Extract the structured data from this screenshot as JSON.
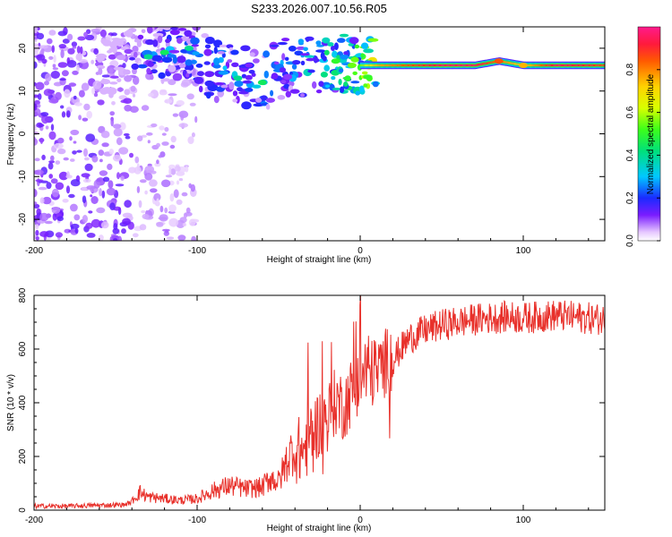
{
  "chart_data": [
    {
      "type": "heatmap",
      "title": "S233.2026.007.10.56.R05",
      "xlabel": "Height of straight line (km)",
      "ylabel": "Frequency (Hz)",
      "xlim": [
        -200,
        150
      ],
      "ylim": [
        -25,
        25
      ],
      "xticks": [
        -200,
        -100,
        0,
        100
      ],
      "xtick_labels": [
        "-200",
        "-100",
        "0",
        "100"
      ],
      "yticks": [
        20,
        10,
        0,
        -10,
        -20
      ],
      "ytick_labels": [
        "20",
        "10",
        "0",
        "-10",
        "-20"
      ],
      "colorbar": {
        "label": "Normalized spectral amplitude",
        "range": [
          0,
          1
        ],
        "ticks": [
          0.0,
          0.2,
          0.4,
          0.6,
          0.8
        ],
        "tick_labels": [
          "0.0",
          "0.2",
          "0.4",
          "0.6",
          "0.8"
        ]
      },
      "ridge": [
        {
          "x": -140,
          "y": 17,
          "amp": 0.2
        },
        {
          "x": -130,
          "y": 18,
          "amp": 0.25
        },
        {
          "x": -120,
          "y": 19,
          "amp": 0.3
        },
        {
          "x": -110,
          "y": 20,
          "amp": 0.25
        },
        {
          "x": -100,
          "y": 18,
          "amp": 0.3
        },
        {
          "x": -90,
          "y": 15,
          "amp": 0.35
        },
        {
          "x": -80,
          "y": 14,
          "amp": 0.3
        },
        {
          "x": -70,
          "y": 13,
          "amp": 0.3
        },
        {
          "x": -60,
          "y": 12,
          "amp": 0.35
        },
        {
          "x": -50,
          "y": 15,
          "amp": 0.3
        },
        {
          "x": -40,
          "y": 16,
          "amp": 0.35
        },
        {
          "x": -30,
          "y": 16,
          "amp": 0.4
        },
        {
          "x": -20,
          "y": 17,
          "amp": 0.45
        },
        {
          "x": -10,
          "y": 16,
          "amp": 0.5
        },
        {
          "x": 0,
          "y": 16,
          "amp": 0.55
        },
        {
          "x": 10,
          "y": 16,
          "amp": 0.75
        },
        {
          "x": 30,
          "y": 16,
          "amp": 0.85
        },
        {
          "x": 50,
          "y": 16,
          "amp": 0.95
        },
        {
          "x": 70,
          "y": 16,
          "amp": 0.95
        },
        {
          "x": 85,
          "y": 17,
          "amp": 0.8
        },
        {
          "x": 100,
          "y": 16,
          "amp": 0.7
        },
        {
          "x": 120,
          "y": 16,
          "amp": 0.95
        },
        {
          "x": 140,
          "y": 16,
          "amp": 0.9
        },
        {
          "x": 150,
          "y": 16,
          "amp": 0.85
        }
      ]
    },
    {
      "type": "line",
      "xlabel": "Height of straight line (km)",
      "ylabel": "SNR (10 * v/v)",
      "xlim": [
        -200,
        150
      ],
      "ylim": [
        0,
        800
      ],
      "xticks": [
        -200,
        -100,
        0,
        100
      ],
      "xtick_labels": [
        "-200",
        "-100",
        "0",
        "100"
      ],
      "yticks": [
        0,
        200,
        400,
        600,
        800
      ],
      "ytick_labels": [
        "0",
        "200",
        "400",
        "600",
        "800"
      ],
      "series": [
        {
          "name": "SNR",
          "color": "#e8302a",
          "x": [
            -200,
            -180,
            -160,
            -145,
            -140,
            -135,
            -130,
            -120,
            -110,
            -100,
            -90,
            -80,
            -70,
            -60,
            -55,
            -50,
            -45,
            -40,
            -35,
            -30,
            -25,
            -20,
            -15,
            -10,
            -5,
            0,
            5,
            10,
            15,
            20,
            25,
            30,
            40,
            50,
            60,
            70,
            80,
            90,
            100,
            110,
            120,
            130,
            140,
            150
          ],
          "y": [
            15,
            15,
            18,
            20,
            30,
            55,
            40,
            35,
            30,
            35,
            60,
            75,
            65,
            70,
            100,
            85,
            150,
            200,
            190,
            260,
            300,
            320,
            380,
            360,
            420,
            470,
            480,
            490,
            520,
            560,
            600,
            640,
            670,
            690,
            700,
            710,
            715,
            720,
            715,
            720,
            725,
            720,
            715,
            710
          ]
        }
      ]
    }
  ]
}
